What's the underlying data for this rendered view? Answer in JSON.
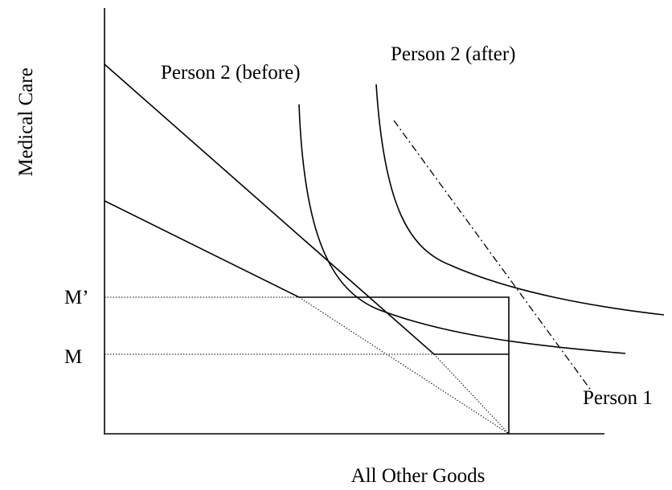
{
  "axes": {
    "y_label": "Medical Care",
    "x_label": "All Other Goods"
  },
  "labels": {
    "person2_before": "Person 2 (before)",
    "person2_after": "Person 2 (after)",
    "person1": "Person 1",
    "m_prime": "M’",
    "m": "M"
  }
}
